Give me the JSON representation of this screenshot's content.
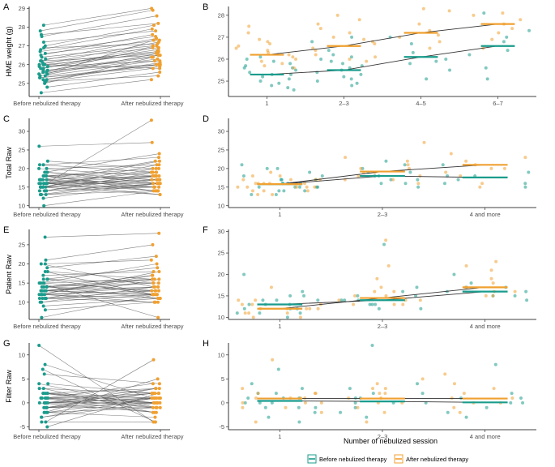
{
  "colors": {
    "before": "#1a9c8c",
    "after": "#f0a030",
    "line": "#555555",
    "trend": "#333333"
  },
  "legend": {
    "before_label": "Before nebulized therapy",
    "after_label": "After nebulized therapy"
  },
  "shared_xlabel_right": "Number of nebulized session",
  "chart_data": [
    {
      "letter": "A",
      "type": "scatter",
      "subtype": "paired",
      "ylabel": "HME weight (g)",
      "ylim": [
        24.3,
        29.1
      ],
      "yticks": [
        25,
        26,
        27,
        28,
        29
      ],
      "categories": [
        "Before nebulized therapy",
        "After nebulized therapy"
      ],
      "pairs": [
        [
          25.0,
          26.4
        ],
        [
          25.2,
          26.1
        ],
        [
          25.4,
          26.6
        ],
        [
          25.3,
          26.0
        ],
        [
          25.6,
          26.9
        ],
        [
          25.1,
          25.8
        ],
        [
          25.8,
          27.0
        ],
        [
          25.5,
          26.3
        ],
        [
          25.9,
          26.8
        ],
        [
          26.0,
          27.2
        ],
        [
          25.7,
          26.5
        ],
        [
          26.2,
          27.4
        ],
        [
          26.5,
          27.6
        ],
        [
          26.8,
          27.9
        ],
        [
          27.0,
          28.1
        ],
        [
          27.5,
          28.6
        ],
        [
          27.8,
          28.9
        ],
        [
          28.1,
          29.0
        ],
        [
          25.9,
          26.2
        ],
        [
          26.1,
          26.7
        ],
        [
          26.3,
          26.9
        ],
        [
          26.6,
          27.3
        ],
        [
          24.8,
          25.6
        ],
        [
          24.5,
          25.2
        ],
        [
          25.2,
          26.0
        ],
        [
          26.9,
          27.1
        ],
        [
          27.2,
          27.8
        ],
        [
          25.4,
          26.2
        ],
        [
          25.6,
          26.4
        ],
        [
          26.0,
          26.6
        ],
        [
          26.4,
          27.0
        ],
        [
          25.3,
          25.9
        ],
        [
          27.6,
          28.2
        ],
        [
          25.8,
          26.7
        ],
        [
          26.7,
          27.5
        ],
        [
          25.1,
          25.4
        ],
        [
          26.2,
          26.5
        ],
        [
          25.5,
          27.3
        ],
        [
          26.0,
          25.8
        ],
        [
          25.7,
          26.0
        ]
      ]
    },
    {
      "letter": "B",
      "type": "scatter",
      "subtype": "grouped",
      "ylabel": "",
      "xlabel": "",
      "ylim": [
        24.3,
        28.4
      ],
      "yticks": [
        25,
        26,
        27,
        28
      ],
      "categories": [
        "1",
        "2–3",
        "4–5",
        "6–7"
      ],
      "series": [
        {
          "name": "Before nebulized therapy",
          "means": [
            25.3,
            25.5,
            26.1,
            26.6
          ],
          "points": [
            [
              25.0,
              25.3,
              25.6,
              24.8,
              25.8,
              25.2,
              24.6,
              25.5,
              26.1,
              25.4,
              24.9,
              25.7,
              25.1,
              26.0,
              25.3,
              24.7,
              25.9,
              25.6
            ],
            [
              25.2,
              25.8,
              26.1,
              24.9,
              25.5,
              26.4,
              25.1,
              27.0,
              25.6,
              25.3,
              24.8,
              26.0,
              25.9,
              26.8,
              25.4,
              25.0,
              26.2,
              25.7
            ],
            [
              25.8,
              26.3,
              25.1,
              26.7,
              26.0,
              25.5,
              27.0,
              25.9
            ],
            [
              26.4,
              27.0,
              25.6,
              26.8,
              28.1,
              26.2,
              25.1,
              27.3
            ]
          ]
        },
        {
          "name": "After nebulized therapy",
          "means": [
            26.2,
            26.6,
            27.2,
            27.6
          ],
          "points": [
            [
              26.0,
              26.5,
              25.8,
              26.9,
              26.3,
              27.2,
              25.7,
              26.6,
              26.1,
              25.9,
              27.5,
              26.4,
              26.2,
              26.8,
              25.6,
              26.7
            ],
            [
              26.4,
              27.0,
              26.1,
              27.4,
              26.7,
              25.9,
              27.8,
              26.5,
              26.9,
              27.6,
              26.2,
              26.8,
              27.2,
              28.0,
              26.0
            ],
            [
              27.0,
              27.6,
              26.8,
              28.2,
              27.3,
              26.5,
              28.3,
              27.1
            ],
            [
              27.4,
              28.0,
              26.9,
              27.8,
              27.6,
              26.5,
              28.1,
              27.2
            ]
          ]
        }
      ],
      "trend": true
    },
    {
      "letter": "C",
      "type": "scatter",
      "subtype": "paired",
      "ylabel": "Total Raw",
      "ylim": [
        9.5,
        33.5
      ],
      "yticks": [
        10,
        15,
        20,
        25,
        30
      ],
      "categories": [
        "Before nebulized therapy",
        "After nebulized therapy"
      ],
      "pairs": [
        [
          15,
          20
        ],
        [
          16,
          18
        ],
        [
          14,
          16
        ],
        [
          17,
          22
        ],
        [
          18,
          17
        ],
        [
          15,
          15
        ],
        [
          16,
          19
        ],
        [
          13,
          14
        ],
        [
          19,
          17
        ],
        [
          20,
          21
        ],
        [
          15,
          18
        ],
        [
          17,
          16
        ],
        [
          16,
          14
        ],
        [
          18,
          20
        ],
        [
          14,
          15
        ],
        [
          21,
          19
        ],
        [
          15,
          17
        ],
        [
          17,
          18
        ],
        [
          16,
          13
        ],
        [
          13,
          16
        ],
        [
          19,
          24
        ],
        [
          18,
          15
        ],
        [
          22,
          20
        ],
        [
          16,
          17
        ],
        [
          14,
          19
        ],
        [
          15,
          13
        ],
        [
          17,
          14
        ],
        [
          20,
          18
        ],
        [
          26,
          27
        ],
        [
          12,
          16
        ],
        [
          10,
          14
        ],
        [
          15,
          33
        ],
        [
          16,
          22
        ],
        [
          18,
          19
        ],
        [
          14,
          18
        ],
        [
          17,
          15
        ],
        [
          16,
          16
        ],
        [
          21,
          23
        ],
        [
          15,
          21
        ],
        [
          13,
          17
        ],
        [
          19,
          16
        ],
        [
          18,
          14
        ]
      ]
    },
    {
      "letter": "D",
      "type": "scatter",
      "subtype": "grouped",
      "ylabel": "",
      "xlabel": "",
      "ylim": [
        9.5,
        33.5
      ],
      "yticks": [
        10,
        15,
        20,
        25,
        30
      ],
      "categories": [
        "1",
        "2–3",
        "4 and more"
      ],
      "series": [
        {
          "name": "Before nebulized therapy",
          "means": [
            15.8,
            18.0,
            17.6
          ],
          "points": [
            [
              15,
              16,
              14,
              17,
              18,
              15,
              16,
              13,
              19,
              20,
              15,
              17,
              16,
              18,
              14,
              21,
              15,
              17,
              16,
              13,
              20,
              14,
              15
            ],
            [
              17,
              19,
              16,
              20,
              18,
              15,
              22,
              17,
              21,
              18,
              19,
              16
            ],
            [
              16,
              18,
              15,
              19,
              17,
              21,
              16,
              18
            ]
          ]
        },
        {
          "name": "After nebulized therapy",
          "means": [
            15.8,
            19.2,
            21.0
          ],
          "points": [
            [
              15,
              17,
              16,
              14,
              18,
              15,
              16,
              13,
              17,
              19,
              15,
              16,
              14,
              18,
              15,
              17,
              16,
              13,
              15,
              14,
              16,
              17
            ],
            [
              18,
              20,
              19,
              17,
              21,
              16,
              23,
              19,
              22,
              18,
              20,
              27,
              17
            ],
            [
              20,
              22,
              19,
              24,
              21,
              18,
              23,
              20,
              16,
              15
            ]
          ]
        }
      ],
      "trend": true
    },
    {
      "letter": "E",
      "type": "scatter",
      "subtype": "paired",
      "ylabel": "Patient Raw",
      "ylim": [
        5.5,
        29
      ],
      "yticks": [
        10,
        15,
        20,
        25
      ],
      "categories": [
        "Before nebulized therapy",
        "After nebulized therapy"
      ],
      "pairs": [
        [
          12,
          14
        ],
        [
          13,
          12
        ],
        [
          15,
          16
        ],
        [
          11,
          13
        ],
        [
          14,
          11
        ],
        [
          12,
          10
        ],
        [
          16,
          15
        ],
        [
          10,
          12
        ],
        [
          13,
          14
        ],
        [
          15,
          13
        ],
        [
          12,
          11
        ],
        [
          14,
          16
        ],
        [
          11,
          10
        ],
        [
          13,
          12
        ],
        [
          17,
          18
        ],
        [
          18,
          12
        ],
        [
          19,
          22
        ],
        [
          20,
          21
        ],
        [
          21,
          25
        ],
        [
          15,
          20
        ],
        [
          14,
          17
        ],
        [
          12,
          18
        ],
        [
          13,
          15
        ],
        [
          11,
          16
        ],
        [
          10,
          14
        ],
        [
          9,
          11
        ],
        [
          8,
          10
        ],
        [
          6,
          12
        ],
        [
          27,
          28
        ],
        [
          16,
          12
        ],
        [
          15,
          6
        ],
        [
          14,
          13
        ],
        [
          13,
          16
        ],
        [
          12,
          17
        ],
        [
          20,
          14
        ],
        [
          18,
          16
        ],
        [
          12,
          13
        ],
        [
          11,
          12
        ],
        [
          14,
          15
        ],
        [
          16,
          19
        ]
      ]
    },
    {
      "letter": "F",
      "type": "scatter",
      "subtype": "grouped",
      "ylabel": "",
      "xlabel": "",
      "ylim": [
        9.5,
        30.5
      ],
      "yticks": [
        10,
        15,
        20,
        25,
        30
      ],
      "categories": [
        "1",
        "2–3",
        "4 and more"
      ],
      "series": [
        {
          "name": "Before nebulized therapy",
          "means": [
            13.0,
            14.0,
            16.0
          ],
          "points": [
            [
              12,
              14,
              11,
              13,
              15,
              10,
              16,
              12,
              13,
              14,
              11,
              20,
              12,
              13,
              15,
              11,
              14
            ],
            [
              13,
              15,
              12,
              14,
              16,
              13,
              27,
              15,
              12,
              14,
              17,
              13,
              14
            ],
            [
              15,
              17,
              16,
              18,
              14,
              20,
              16,
              15,
              17
            ]
          ]
        },
        {
          "name": "After nebulized therapy",
          "means": [
            12.0,
            14.5,
            17.0
          ],
          "points": [
            [
              11,
              13,
              12,
              10,
              14,
              12,
              11,
              13,
              12,
              11,
              17,
              12,
              13,
              14,
              10,
              12
            ],
            [
              14,
              16,
              13,
              15,
              14,
              17,
              28,
              13,
              15,
              14,
              16,
              19,
              13,
              22
            ],
            [
              16,
              18,
              17,
              19,
              15,
              21,
              16,
              22,
              23,
              15
            ]
          ]
        }
      ],
      "trend": true
    },
    {
      "letter": "G",
      "type": "scatter",
      "subtype": "paired",
      "ylabel": "Filter Raw",
      "ylim": [
        -5.6,
        12.5
      ],
      "yticks": [
        -5,
        0,
        5,
        10
      ],
      "categories": [
        "Before nebulized therapy",
        "After nebulized therapy"
      ],
      "pairs": [
        [
          0,
          1
        ],
        [
          1,
          0
        ],
        [
          -1,
          2
        ],
        [
          2,
          -1
        ],
        [
          0,
          0
        ],
        [
          -2,
          1
        ],
        [
          1,
          2
        ],
        [
          -1,
          -1
        ],
        [
          0,
          3
        ],
        [
          2,
          0
        ],
        [
          -3,
          1
        ],
        [
          1,
          -2
        ],
        [
          0,
          1
        ],
        [
          -1,
          0
        ],
        [
          3,
          2
        ],
        [
          -2,
          -1
        ],
        [
          1,
          1
        ],
        [
          0,
          -2
        ],
        [
          2,
          3
        ],
        [
          -1,
          1
        ],
        [
          4,
          2
        ],
        [
          7,
          -4
        ],
        [
          12,
          -4
        ],
        [
          8,
          1
        ],
        [
          -4,
          9
        ],
        [
          -5,
          2
        ],
        [
          -4,
          -4
        ],
        [
          6,
          4
        ],
        [
          4,
          -1
        ],
        [
          -2,
          5
        ],
        [
          1,
          -1
        ],
        [
          0,
          2
        ],
        [
          -3,
          0
        ],
        [
          2,
          1
        ],
        [
          -1,
          3
        ],
        [
          3,
          -2
        ],
        [
          0,
          0
        ],
        [
          1,
          4
        ],
        [
          -2,
          -3
        ],
        [
          2,
          0
        ]
      ]
    },
    {
      "letter": "H",
      "type": "scatter",
      "subtype": "grouped",
      "ylabel": "",
      "xlabel": "Number of nebulized session",
      "ylim": [
        -5.6,
        12.5
      ],
      "yticks": [
        -5,
        0,
        5,
        10
      ],
      "categories": [
        "1",
        "2–3",
        "4 and more"
      ],
      "series": [
        {
          "name": "Before nebulized therapy",
          "means": [
            0.4,
            0.3,
            0.1
          ],
          "points": [
            [
              0,
              2,
              -1,
              1,
              -2,
              3,
              0,
              -1,
              7,
              4,
              -3,
              1,
              0,
              2,
              -4,
              1,
              -1
            ],
            [
              0,
              1,
              -2,
              2,
              12,
              0,
              -1,
              3,
              -3,
              1,
              0,
              2,
              4
            ],
            [
              1,
              -1,
              0,
              2,
              -3,
              8,
              0,
              1,
              -2
            ]
          ]
        },
        {
          "name": "After nebulized therapy",
          "means": [
            0.9,
            0.9,
            0.9
          ],
          "points": [
            [
              1,
              0,
              2,
              -1,
              9,
              1,
              -4,
              2,
              0,
              3,
              -2,
              1,
              0,
              -1,
              2,
              1
            ],
            [
              1,
              3,
              -1,
              5,
              0,
              2,
              4,
              -2,
              1,
              0,
              -4,
              2,
              3
            ],
            [
              2,
              0,
              4,
              -1,
              6,
              1,
              3,
              -2,
              0,
              1
            ]
          ]
        }
      ],
      "trend": true
    }
  ]
}
